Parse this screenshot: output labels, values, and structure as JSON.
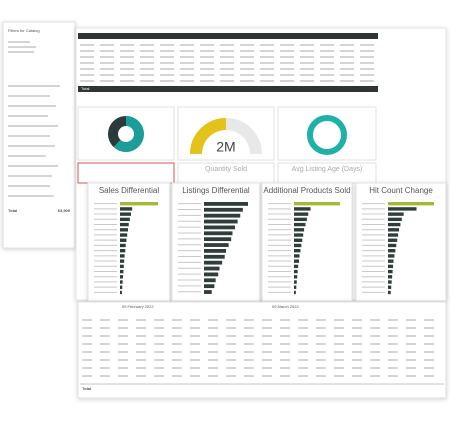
{
  "filters_panel": {
    "title": "Filters for Catalog",
    "total_label": "Total",
    "total_value": "63,909"
  },
  "kpi_table": {
    "total_label": "Total"
  },
  "cards": {
    "donut": {
      "values": [
        62,
        38
      ],
      "colors": [
        "#1b9e9a",
        "#2b3a3a"
      ]
    },
    "gauge": {
      "label": "2M",
      "color": "#e3c21a"
    },
    "quantity_title": "Quantity Sold",
    "age_title": "Avg Listing Age (Days)"
  },
  "charts": [
    {
      "title": "Sales Differential",
      "highlight": "#a3b93a",
      "color": "#2f3d3b",
      "values": [
        100,
        32,
        29,
        26,
        23,
        21,
        19,
        17,
        15,
        14,
        12,
        11,
        10,
        9,
        8,
        7,
        6,
        5
      ]
    },
    {
      "title": "Listings Differential",
      "highlight": "#2f3d3b",
      "color": "#2f3d3b",
      "values": [
        34,
        30,
        28,
        26,
        24,
        22,
        21,
        19,
        17,
        16,
        14,
        12,
        11,
        9,
        8,
        6
      ]
    },
    {
      "title": "Additional Products Sold",
      "highlight": "#a3b93a",
      "color": "#2f3d3b",
      "values": [
        100,
        36,
        31,
        28,
        25,
        22,
        20,
        18,
        16,
        14,
        12,
        11,
        9,
        8,
        7,
        6,
        5,
        4
      ]
    },
    {
      "title": "Hit Count Change",
      "highlight": "#a3b93a",
      "color": "#2f3d3b",
      "values": [
        100,
        62,
        34,
        30,
        27,
        24,
        22,
        20,
        18,
        16,
        14,
        12,
        11,
        10,
        9,
        8,
        7,
        6
      ]
    }
  ],
  "period_table": {
    "periods": [
      "09 February 2022",
      "09 March 2022"
    ],
    "total_label": "Total"
  }
}
